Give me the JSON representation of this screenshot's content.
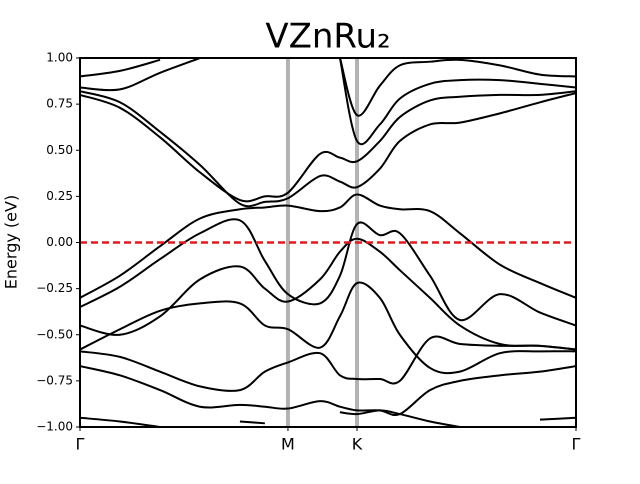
{
  "chart_data": {
    "type": "band_structure",
    "title": "VZnRu₂",
    "y_label": "Energy (eV)",
    "line_color": "#000000",
    "symmetry_line_color": "#b3b3b3",
    "fermi_level": 0,
    "fermi_color": "#e41a1c",
    "xlim": [
      0,
      2.385
    ],
    "ylim": [
      -1,
      1
    ],
    "xticks": [
      {
        "value": 0,
        "label": "Γ"
      },
      {
        "value": 1,
        "label": "M"
      },
      {
        "value": 1.332,
        "label": "K"
      },
      {
        "value": 2.385,
        "label": "Γ"
      }
    ],
    "yticks": [
      {
        "value": -1,
        "label": "−1.00"
      },
      {
        "value": -0.75,
        "label": "−0.75"
      },
      {
        "value": -0.5,
        "label": "−0.50"
      },
      {
        "value": -0.25,
        "label": "−0.25"
      },
      {
        "value": 0,
        "label": "0.00"
      },
      {
        "value": 0.25,
        "label": "0.25"
      },
      {
        "value": 0.5,
        "label": "0.50"
      },
      {
        "value": 0.75,
        "label": "0.75"
      },
      {
        "value": 1,
        "label": "1.00"
      }
    ],
    "x": [
      0,
      0.192,
      0.385,
      0.577,
      0.769,
      0.889,
      1.0,
      1.154,
      1.25,
      1.332,
      1.442,
      1.538,
      1.683,
      1.827,
      2.019,
      2.212,
      2.385
    ],
    "bands": [
      {
        "values": [
          0.9,
          0.93,
          0.99,
          null,
          null,
          null,
          null,
          null,
          null,
          null,
          null,
          null,
          null,
          null,
          null,
          null,
          null
        ]
      },
      {
        "values": [
          0.84,
          0.83,
          0.92,
          1.0,
          null,
          null,
          null,
          null,
          null,
          null,
          null,
          null,
          null,
          null,
          null,
          null,
          null
        ]
      },
      {
        "values": [
          null,
          null,
          null,
          null,
          null,
          null,
          null,
          null,
          1.0,
          0.69,
          0.85,
          0.96,
          0.98,
          0.99,
          0.96,
          0.91,
          0.9
        ]
      },
      {
        "values": [
          null,
          null,
          null,
          null,
          null,
          null,
          null,
          null,
          1.0,
          0.55,
          0.64,
          0.78,
          0.86,
          0.88,
          0.88,
          0.86,
          0.84
        ]
      },
      {
        "values": [
          0.8,
          0.73,
          0.57,
          0.38,
          0.23,
          0.25,
          0.27,
          0.48,
          0.46,
          0.44,
          0.55,
          0.68,
          0.77,
          0.79,
          0.8,
          0.8,
          0.82
        ]
      },
      {
        "values": [
          0.82,
          0.76,
          0.6,
          0.42,
          0.21,
          0.22,
          0.24,
          0.36,
          0.33,
          0.3,
          0.4,
          0.55,
          0.64,
          0.65,
          0.7,
          0.76,
          0.81
        ]
      },
      {
        "values": [
          -0.3,
          -0.18,
          -0.02,
          0.13,
          0.18,
          0.19,
          0.2,
          0.17,
          0.19,
          0.26,
          0.2,
          0.18,
          0.17,
          0.05,
          -0.12,
          -0.22,
          -0.3
        ]
      },
      {
        "values": [
          -0.35,
          -0.24,
          -0.09,
          0.05,
          0.12,
          -0.1,
          -0.28,
          -0.33,
          -0.18,
          0.1,
          0.04,
          0.05,
          -0.18,
          -0.42,
          -0.28,
          -0.38,
          -0.45
        ]
      },
      {
        "values": [
          -0.45,
          -0.5,
          -0.4,
          -0.2,
          -0.13,
          -0.25,
          -0.32,
          -0.2,
          -0.05,
          0.02,
          -0.05,
          -0.15,
          -0.3,
          -0.45,
          -0.55,
          -0.56,
          -0.58
        ]
      },
      {
        "values": [
          -0.58,
          -0.47,
          -0.37,
          -0.33,
          -0.33,
          -0.45,
          -0.47,
          -0.57,
          -0.4,
          -0.22,
          -0.3,
          -0.5,
          -0.68,
          -0.7,
          -0.6,
          -0.59,
          -0.59
        ]
      },
      {
        "values": [
          -0.59,
          -0.62,
          -0.7,
          -0.78,
          -0.8,
          -0.7,
          -0.65,
          -0.6,
          -0.72,
          -0.74,
          -0.74,
          -0.75,
          -0.52,
          -0.55,
          -0.56,
          -0.56,
          -0.58
        ]
      },
      {
        "values": [
          -0.67,
          -0.72,
          -0.8,
          -0.89,
          -0.88,
          -0.89,
          -0.9,
          -0.86,
          -0.89,
          -0.91,
          -0.91,
          -0.93,
          -0.8,
          -0.75,
          -0.72,
          -0.7,
          -0.67
        ]
      },
      {
        "values": [
          -0.95,
          -0.97,
          -1.0,
          null,
          -0.97,
          -0.98,
          null,
          null,
          -0.92,
          -0.93,
          -0.91,
          -0.93,
          -0.97,
          -1.0,
          null,
          -0.96,
          -0.95
        ]
      }
    ]
  }
}
